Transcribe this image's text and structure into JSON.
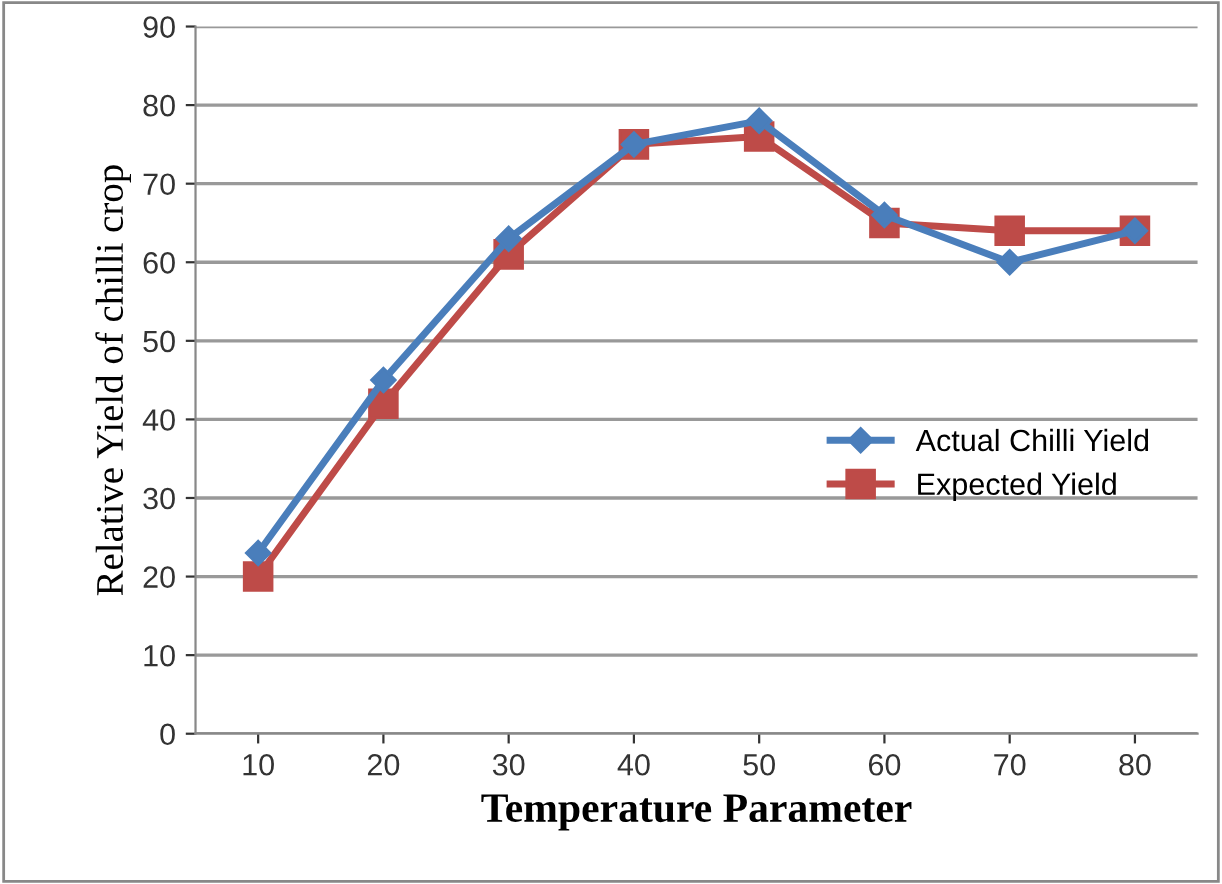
{
  "chart_data": {
    "type": "line",
    "xlabel": "Temperature Parameter",
    "ylabel": "Relative Yield of chilli crop",
    "categories": [
      "10",
      "20",
      "30",
      "40",
      "50",
      "60",
      "70",
      "80"
    ],
    "series": [
      {
        "name": "Actual Chilli Yield",
        "color": "#4a7ebb",
        "values": [
          23,
          45,
          63,
          75,
          78,
          66,
          60,
          64
        ],
        "marker": "diamond"
      },
      {
        "name": "Expected Yield",
        "color": "#be4b48",
        "values": [
          20,
          42,
          61,
          75,
          76,
          65,
          64,
          64
        ],
        "marker": "square"
      }
    ],
    "ylim": [
      0,
      90
    ],
    "yticks": [
      0,
      10,
      20,
      30,
      40,
      50,
      60,
      70,
      80,
      90
    ],
    "grid": "y",
    "legend": "right",
    "line_style": "solid"
  }
}
